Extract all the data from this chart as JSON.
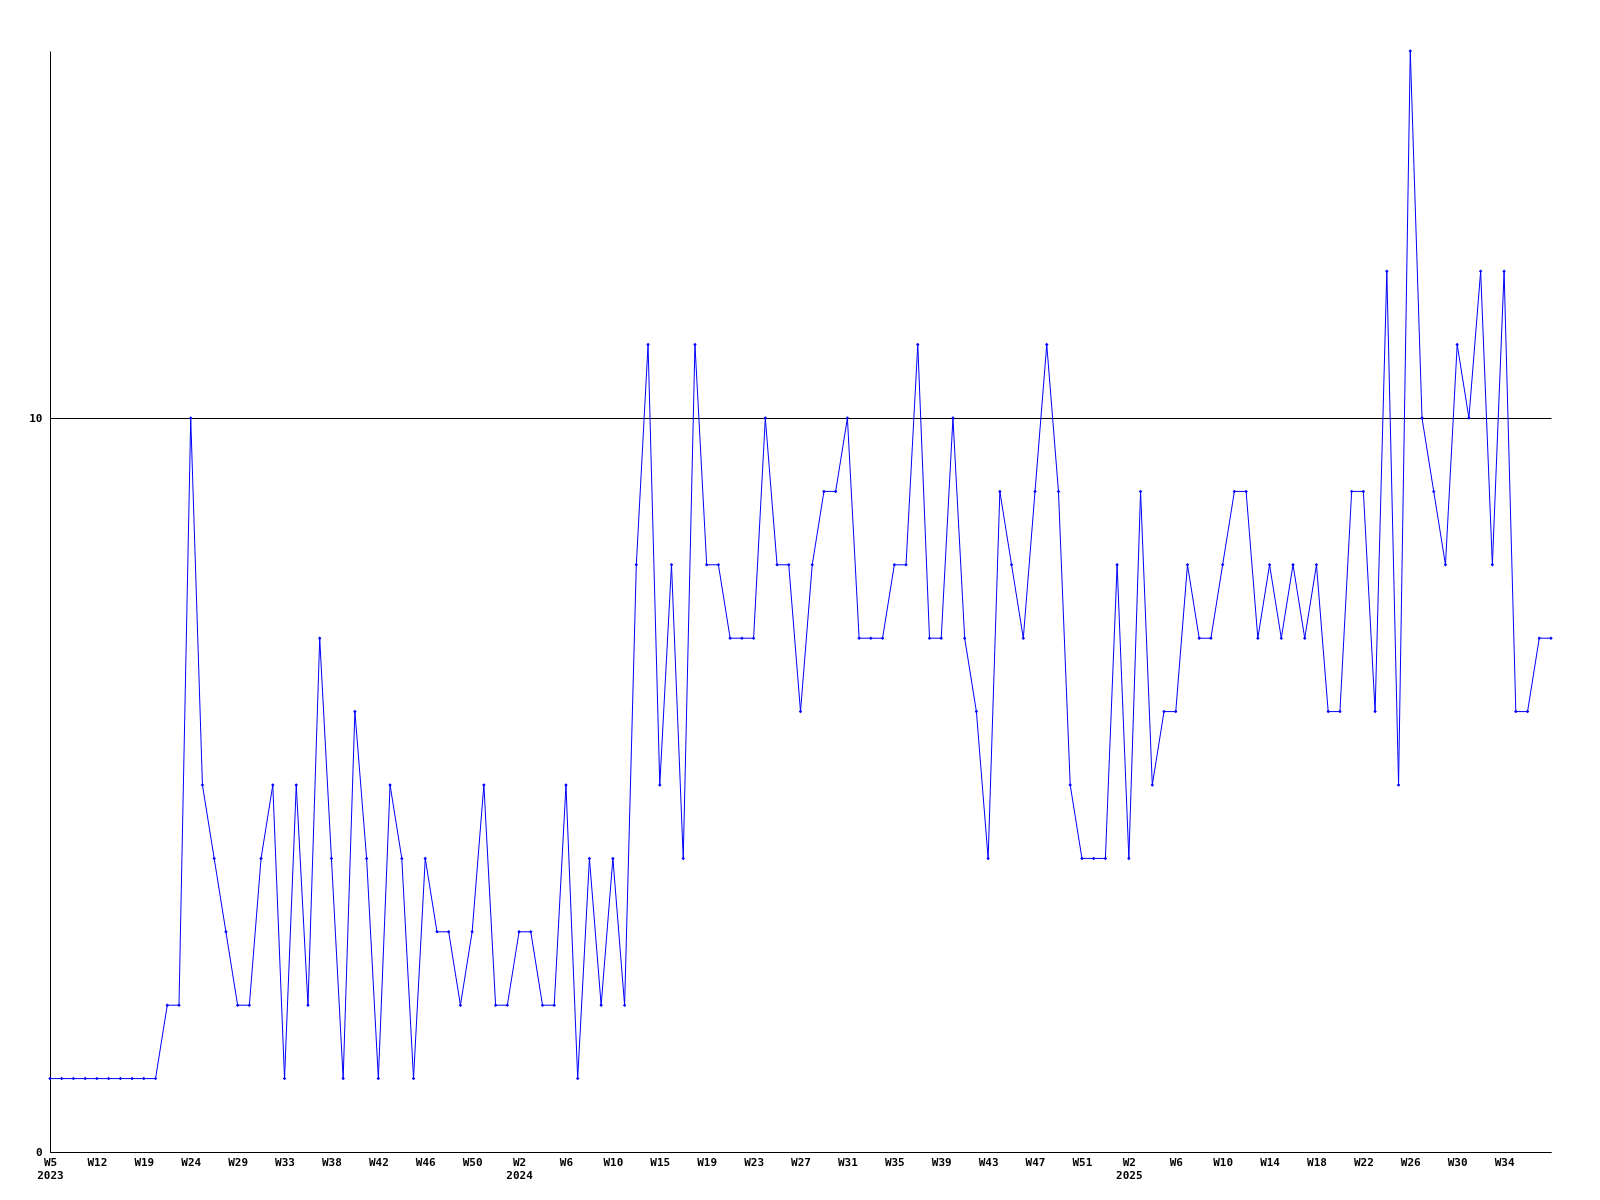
{
  "chart_data": {
    "type": "line",
    "categories": [
      "W5\n2023",
      null,
      null,
      null,
      "W12",
      null,
      null,
      null,
      "W19",
      null,
      null,
      null,
      "W24",
      null,
      null,
      null,
      "W29",
      null,
      null,
      null,
      "W33",
      null,
      null,
      null,
      "W38",
      null,
      null,
      null,
      "W42",
      null,
      null,
      null,
      "W46",
      null,
      null,
      null,
      "W50",
      null,
      null,
      null,
      "W2\n2024",
      null,
      null,
      null,
      "W6",
      null,
      null,
      null,
      "W10",
      null,
      null,
      null,
      "W15",
      null,
      null,
      null,
      "W19",
      null,
      null,
      null,
      "W23",
      null,
      null,
      null,
      "W27",
      null,
      null,
      null,
      "W31",
      null,
      null,
      null,
      "W35",
      null,
      null,
      null,
      "W39",
      null,
      null,
      null,
      "W43",
      null,
      null,
      null,
      "W47",
      null,
      null,
      null,
      "W51",
      null,
      null,
      null,
      "W2\n2025",
      null,
      null,
      null,
      "W6",
      null,
      null,
      null,
      "W10",
      null,
      null,
      null,
      "W14",
      null,
      null,
      null,
      "W18",
      null,
      null,
      null,
      "W22",
      null,
      null,
      null,
      "W26",
      null,
      null,
      null,
      "W30",
      null,
      null,
      null,
      "W34",
      null,
      null,
      null,
      null
    ],
    "series": [
      {
        "color": "#0000ff",
        "values": [
          1,
          1,
          1,
          1,
          1,
          1,
          1,
          1,
          1,
          1,
          2,
          2,
          10,
          5,
          4,
          3,
          2,
          2,
          4,
          5,
          1,
          5,
          2,
          7,
          4,
          1,
          6,
          4,
          1,
          5,
          4,
          1,
          4,
          3,
          3,
          2,
          3,
          5,
          2,
          2,
          3,
          3,
          2,
          2,
          5,
          1,
          4,
          2,
          4,
          2,
          8,
          11,
          5,
          8,
          4,
          11,
          8,
          8,
          7,
          7,
          7,
          10,
          8,
          8,
          6,
          8,
          9,
          9,
          10,
          7,
          7,
          7,
          8,
          8,
          11,
          7,
          7,
          10,
          7,
          6,
          4,
          9,
          8,
          7,
          9,
          11,
          9,
          5,
          4,
          4,
          4,
          8,
          4,
          9,
          5,
          6,
          6,
          8,
          7,
          7,
          8,
          9,
          9,
          7,
          8,
          7,
          8,
          7,
          8,
          6,
          6,
          9,
          9,
          6,
          12,
          5,
          15,
          10,
          9,
          8,
          11,
          10,
          12,
          8,
          12,
          6,
          6,
          7,
          7
        ]
      }
    ],
    "ylim": [
      0,
      15
    ],
    "yticks": [
      0,
      10
    ],
    "grid": "y",
    "marker": "diamond",
    "line_style": "solid"
  }
}
